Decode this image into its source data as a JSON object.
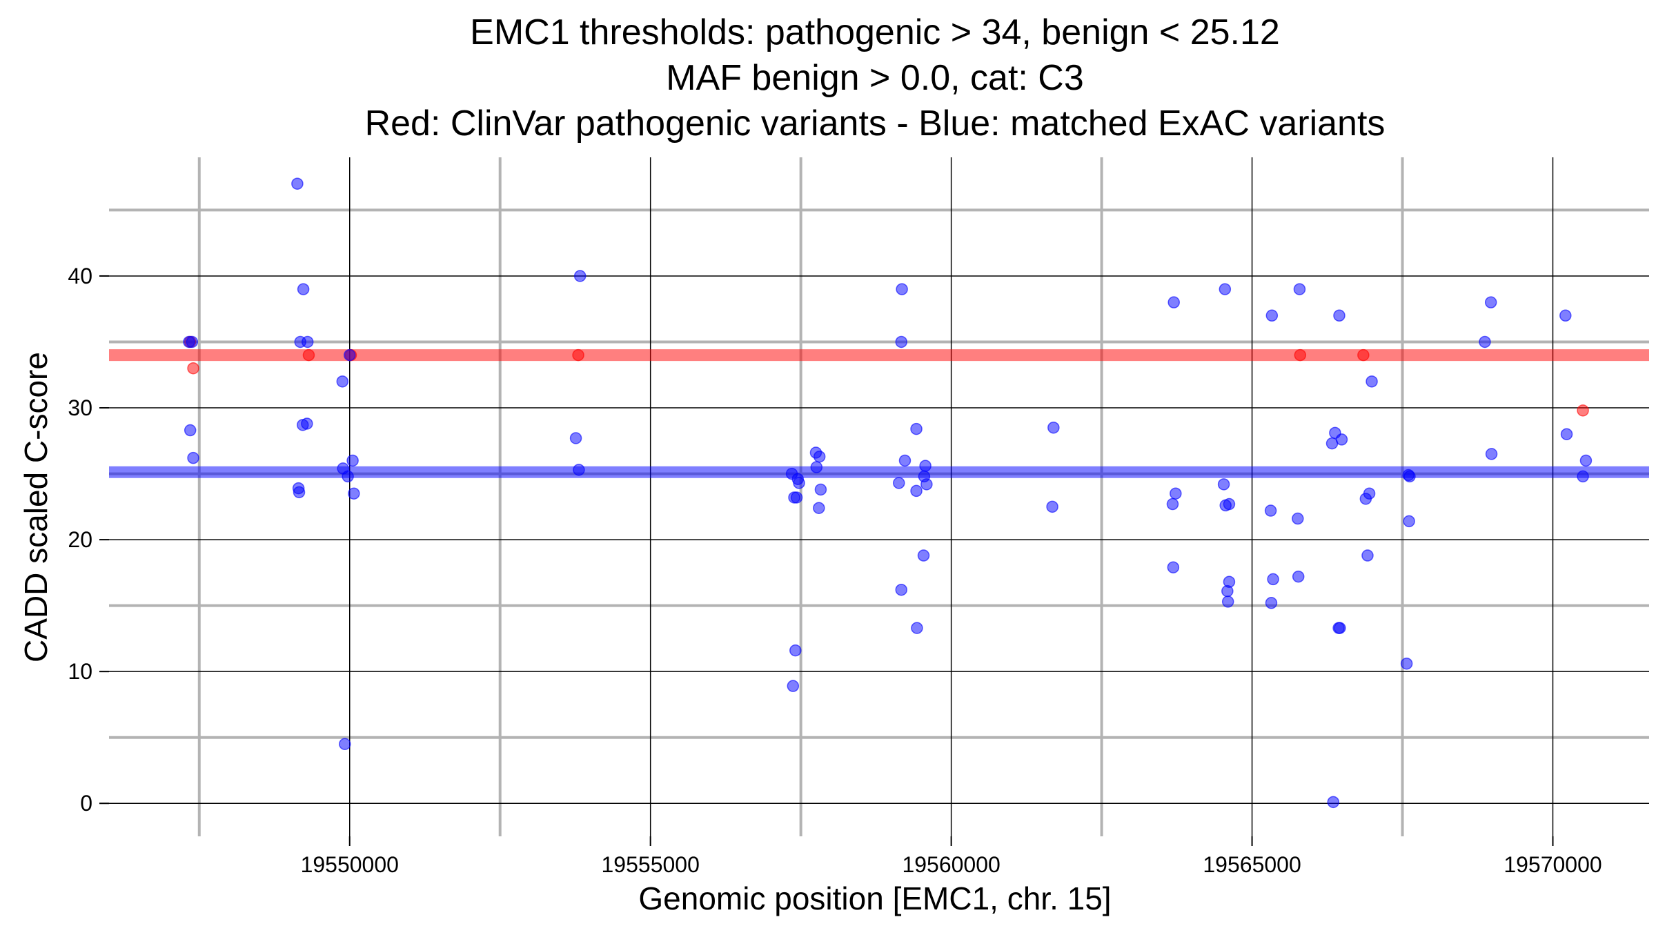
{
  "chart_data": {
    "type": "scatter",
    "title_lines": [
      "EMC1 thresholds: pathogenic > 34, benign < 25.12",
      "MAF benign > 0.0, cat: C3",
      "Red: ClinVar pathogenic variants - Blue: matched ExAC variants"
    ],
    "xlabel": "Genomic position [EMC1, chr. 15]",
    "ylabel": "CADD scaled C-score",
    "xlim": [
      19546000,
      19571600
    ],
    "ylim": [
      -2.5,
      49
    ],
    "x_major_ticks": [
      19550000,
      19555000,
      19560000,
      19565000,
      19570000
    ],
    "x_minor_gridlines": [
      19547500,
      19552500,
      19557500,
      19562500,
      19567500
    ],
    "y_major_ticks": [
      0,
      10,
      20,
      30,
      40
    ],
    "y_minor_gridlines": [
      5,
      15,
      25,
      35,
      45
    ],
    "grid": true,
    "thresholds": [
      {
        "value": 34.0,
        "color": "#ff0000"
      },
      {
        "value": 25.12,
        "color": "#0000ff"
      }
    ],
    "series": [
      {
        "color": "#ff0000",
        "points": [
          [
            19547350,
            35
          ],
          [
            19547400,
            33
          ],
          [
            19549320,
            34
          ],
          [
            19550020,
            34
          ],
          [
            19553800,
            34
          ],
          [
            19565800,
            34
          ],
          [
            19566850,
            34
          ],
          [
            19570500,
            29.8
          ]
        ]
      },
      {
        "color": "#0000ff",
        "points": [
          [
            19547330,
            35
          ],
          [
            19547380,
            35
          ],
          [
            19547350,
            28.3
          ],
          [
            19547400,
            26.2
          ],
          [
            19549130,
            47
          ],
          [
            19549180,
            35
          ],
          [
            19549300,
            35
          ],
          [
            19549230,
            39
          ],
          [
            19549220,
            28.7
          ],
          [
            19549290,
            28.8
          ],
          [
            19549150,
            23.9
          ],
          [
            19549160,
            23.6
          ],
          [
            19549880,
            32
          ],
          [
            19549890,
            25.4
          ],
          [
            19549970,
            24.8
          ],
          [
            19550050,
            26
          ],
          [
            19550070,
            23.5
          ],
          [
            19549920,
            4.5
          ],
          [
            19550000,
            34
          ],
          [
            19553830,
            40
          ],
          [
            19553760,
            27.7
          ],
          [
            19553810,
            25.3
          ],
          [
            19557350,
            25
          ],
          [
            19557430,
            23.2
          ],
          [
            19557390,
            23.2
          ],
          [
            19557450,
            24.6
          ],
          [
            19557470,
            24.3
          ],
          [
            19557410,
            11.6
          ],
          [
            19557370,
            8.9
          ],
          [
            19557750,
            26.6
          ],
          [
            19557810,
            26.3
          ],
          [
            19557760,
            25.5
          ],
          [
            19557830,
            23.8
          ],
          [
            19557800,
            22.4
          ],
          [
            19559180,
            39
          ],
          [
            19559170,
            35
          ],
          [
            19559230,
            26
          ],
          [
            19559130,
            24.3
          ],
          [
            19559420,
            28.4
          ],
          [
            19559420,
            23.7
          ],
          [
            19559570,
            25.6
          ],
          [
            19559550,
            24.8
          ],
          [
            19559590,
            24.2
          ],
          [
            19559540,
            18.8
          ],
          [
            19559170,
            16.2
          ],
          [
            19559430,
            13.3
          ],
          [
            19561700,
            28.5
          ],
          [
            19561680,
            22.5
          ],
          [
            19563700,
            38
          ],
          [
            19563730,
            23.5
          ],
          [
            19563680,
            22.7
          ],
          [
            19563690,
            17.9
          ],
          [
            19564550,
            39
          ],
          [
            19564530,
            24.2
          ],
          [
            19564560,
            22.6
          ],
          [
            19564620,
            22.7
          ],
          [
            19564620,
            16.8
          ],
          [
            19564590,
            16.1
          ],
          [
            19564600,
            15.3
          ],
          [
            19565330,
            37
          ],
          [
            19565310,
            22.2
          ],
          [
            19565350,
            17
          ],
          [
            19565320,
            15.2
          ],
          [
            19565790,
            39
          ],
          [
            19565760,
            21.6
          ],
          [
            19565770,
            17.2
          ],
          [
            19566450,
            37
          ],
          [
            19566380,
            28.1
          ],
          [
            19566490,
            27.6
          ],
          [
            19566330,
            27.3
          ],
          [
            19566440,
            13.3
          ],
          [
            19566460,
            13.3
          ],
          [
            19566350,
            0.1
          ],
          [
            19566990,
            32
          ],
          [
            19566950,
            23.5
          ],
          [
            19566890,
            23.1
          ],
          [
            19566920,
            18.8
          ],
          [
            19567600,
            24.9
          ],
          [
            19567620,
            24.8
          ],
          [
            19567610,
            21.4
          ],
          [
            19567570,
            10.6
          ],
          [
            19568870,
            35
          ],
          [
            19568970,
            38
          ],
          [
            19568980,
            26.5
          ],
          [
            19570210,
            37
          ],
          [
            19570230,
            28
          ],
          [
            19570550,
            26
          ],
          [
            19570500,
            24.8
          ]
        ]
      }
    ]
  }
}
